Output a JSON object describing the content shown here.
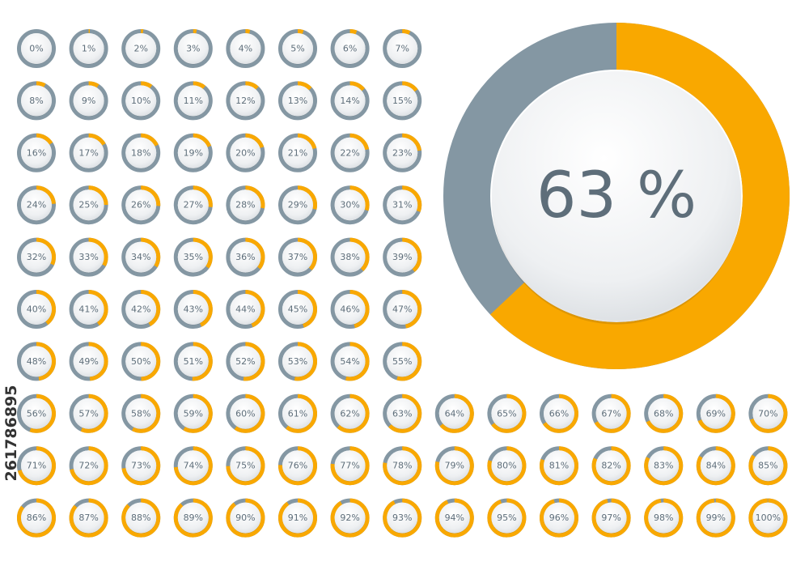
{
  "chart_data": {
    "type": "donut",
    "fill_color": "#f9a800",
    "track_color": "#8497a3",
    "values": [
      0,
      1,
      2,
      3,
      4,
      5,
      6,
      7,
      8,
      9,
      10,
      11,
      12,
      13,
      14,
      15,
      16,
      17,
      18,
      19,
      20,
      21,
      22,
      23,
      24,
      25,
      26,
      27,
      28,
      29,
      30,
      31,
      32,
      33,
      34,
      35,
      36,
      37,
      38,
      39,
      40,
      41,
      42,
      43,
      44,
      45,
      46,
      47,
      48,
      49,
      50,
      51,
      52,
      53,
      54,
      55,
      56,
      57,
      58,
      59,
      60,
      61,
      62,
      63,
      64,
      65,
      66,
      67,
      68,
      69,
      70,
      71,
      72,
      73,
      74,
      75,
      76,
      77,
      78,
      79,
      80,
      81,
      82,
      83,
      84,
      85,
      86,
      87,
      88,
      89,
      90,
      91,
      92,
      93,
      94,
      95,
      96,
      97,
      98,
      99,
      100
    ],
    "value_labels": [
      "0%",
      "1%",
      "2%",
      "3%",
      "4%",
      "5%",
      "6%",
      "7%",
      "8%",
      "9%",
      "10%",
      "11%",
      "12%",
      "13%",
      "14%",
      "15%",
      "16%",
      "17%",
      "18%",
      "19%",
      "20%",
      "21%",
      "22%",
      "23%",
      "24%",
      "25%",
      "26%",
      "27%",
      "28%",
      "29%",
      "30%",
      "31%",
      "32%",
      "33%",
      "34%",
      "35%",
      "36%",
      "37%",
      "38%",
      "39%",
      "40%",
      "41%",
      "42%",
      "43%",
      "44%",
      "45%",
      "46%",
      "47%",
      "48%",
      "49%",
      "50%",
      "51%",
      "52%",
      "53%",
      "54%",
      "55%",
      "56%",
      "57%",
      "58%",
      "59%",
      "60%",
      "61%",
      "62%",
      "63%",
      "64%",
      "65%",
      "66%",
      "67%",
      "68%",
      "69%",
      "70%",
      "71%",
      "72%",
      "73%",
      "74%",
      "75%",
      "76%",
      "77%",
      "78%",
      "79%",
      "80%",
      "81%",
      "82%",
      "83%",
      "84%",
      "85%",
      "86%",
      "87%",
      "88%",
      "89%",
      "90%",
      "91%",
      "92%",
      "93%",
      "94%",
      "95%",
      "96%",
      "97%",
      "98%",
      "99%",
      "100%"
    ],
    "featured": {
      "value": 63,
      "value_label": "63 %"
    }
  },
  "watermark": "261786895"
}
